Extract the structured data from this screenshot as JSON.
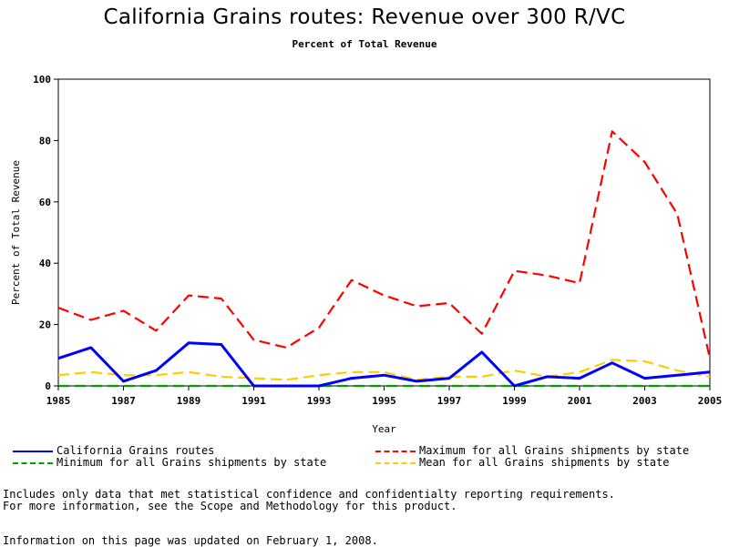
{
  "chart_data": {
    "type": "line",
    "title": "California Grains routes: Revenue over 300 R/VC",
    "subtitle": "Percent of Total Revenue",
    "xlabel": "Year",
    "ylabel": "Percent of Total Revenue",
    "xlim": [
      1985,
      2005
    ],
    "ylim": [
      0,
      100
    ],
    "xticks": [
      "1985",
      "1987",
      "1989",
      "1991",
      "1993",
      "1995",
      "1997",
      "1999",
      "2001",
      "2003",
      "2005"
    ],
    "yticks": [
      "0",
      "20",
      "40",
      "60",
      "80",
      "100"
    ],
    "x": [
      1985,
      1986,
      1987,
      1988,
      1989,
      1990,
      1991,
      1992,
      1993,
      1994,
      1995,
      1996,
      1997,
      1998,
      1999,
      2000,
      2001,
      2002,
      2003,
      2004,
      2005
    ],
    "series": [
      {
        "name": "California Grains routes",
        "color": "#0000ff",
        "dash": "solid",
        "values": [
          9,
          12.5,
          1.5,
          5,
          14,
          13.5,
          0,
          0,
          0,
          2.5,
          3.5,
          1.5,
          2.5,
          11,
          0,
          3,
          2.5,
          7.5,
          2.5,
          3.5,
          4.5
        ]
      },
      {
        "name": "Maximum for all Grains shipments by state",
        "color": "#ff0000",
        "dash": "dashed",
        "values": [
          25.5,
          21.5,
          24.5,
          18,
          29.5,
          28.5,
          15,
          12.5,
          19,
          34.5,
          29.5,
          26,
          27,
          17,
          37.5,
          36,
          33.5,
          83,
          73,
          56,
          9
        ]
      },
      {
        "name": "Minimum for all Grains shipments by state",
        "color": "#00a000",
        "dash": "dashed",
        "values": [
          0,
          0,
          0,
          0,
          0,
          0,
          0,
          0,
          0,
          0,
          0,
          0,
          0,
          0,
          0,
          0,
          0,
          0,
          0,
          0,
          0
        ]
      },
      {
        "name": "Mean for all Grains shipments by state",
        "color": "#ffcc00",
        "dash": "dashed",
        "values": [
          3.5,
          4.5,
          3.5,
          3.5,
          4.5,
          3,
          2.5,
          2,
          3.5,
          4.5,
          4.5,
          2,
          3,
          3,
          5,
          3,
          4.5,
          8.5,
          8,
          5,
          3
        ]
      }
    ],
    "legend_position": "bottom",
    "grid": false
  },
  "notes": {
    "line1": "Includes only data that met statistical confidence and confidentialty reporting requirements.",
    "line2": "For more information, see the Scope and Methodology for this product.",
    "updated": "Information on this page was updated on February 1, 2008."
  }
}
